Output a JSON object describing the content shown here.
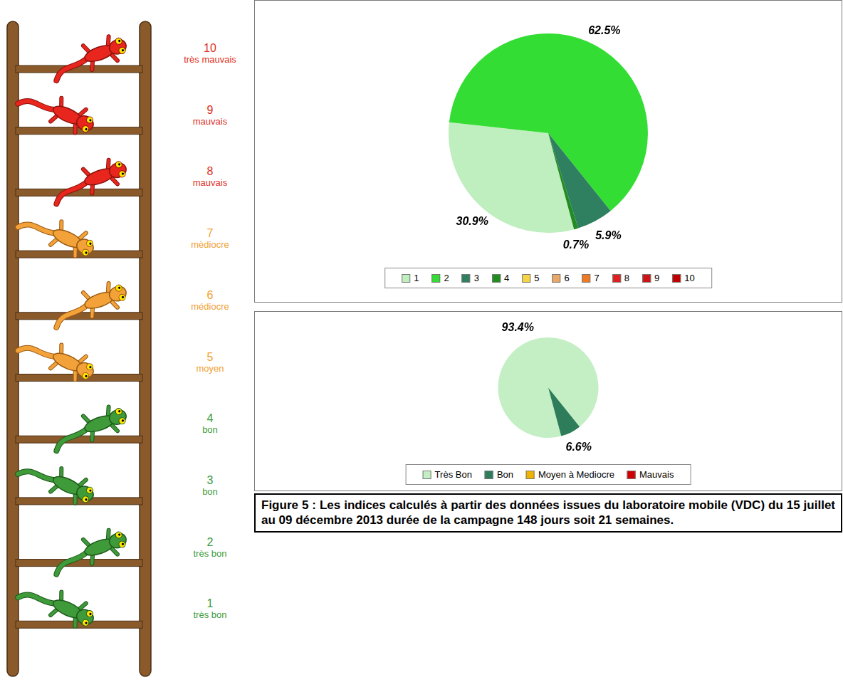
{
  "ladder": {
    "levels": [
      {
        "value": 10,
        "label": "très mauvais",
        "color": "#e0301e"
      },
      {
        "value": 9,
        "label": "mauvais",
        "color": "#e0301e"
      },
      {
        "value": 8,
        "label": "mauvais",
        "color": "#e0301e"
      },
      {
        "value": 7,
        "label": "mèdiocre",
        "color": "#f0a030"
      },
      {
        "value": 6,
        "label": "médiocre",
        "color": "#f0a030"
      },
      {
        "value": 5,
        "label": "moyen",
        "color": "#f0a030"
      },
      {
        "value": 4,
        "label": "bon",
        "color": "#3c9c3c"
      },
      {
        "value": 3,
        "label": "bon",
        "color": "#3c9c3c"
      },
      {
        "value": 2,
        "label": "très bon",
        "color": "#3c9c3c"
      },
      {
        "value": 1,
        "label": "très bon",
        "color": "#3c9c3c"
      }
    ]
  },
  "chart_data": [
    {
      "type": "pie",
      "categories": [
        "1",
        "2",
        "3",
        "4",
        "5",
        "6",
        "7",
        "8",
        "9",
        "10"
      ],
      "values": [
        30.9,
        62.5,
        5.9,
        0.7,
        0,
        0,
        0,
        0,
        0,
        0
      ],
      "value_labels": [
        "30.9%",
        "62.5%",
        "5.9%",
        "0.7%",
        null,
        null,
        null,
        null,
        null,
        null
      ],
      "colors": [
        "#bfeebf",
        "#33dd33",
        "#2e8060",
        "#228b22",
        "#f5d547",
        "#e8a868",
        "#ee7b24",
        "#e02020",
        "#cc1414",
        "#c00000"
      ],
      "data_labels": true,
      "legend": "bottom"
    },
    {
      "type": "pie",
      "categories": [
        "Très Bon",
        "Bon",
        "Moyen à Mediocre",
        "Mauvais"
      ],
      "values": [
        93.4,
        6.6,
        0,
        0
      ],
      "value_labels": [
        "93.4%",
        "6.6%",
        null,
        null
      ],
      "colors": [
        "#c4efc4",
        "#2e7d5a",
        "#f0b400",
        "#d00000"
      ],
      "data_labels": true,
      "legend": "bottom"
    }
  ],
  "caption": "Figure 5 : Les indices calculés à partir des données issues du laboratoire mobile (VDC) du 15 juillet au 09 décembre 2013 durée de la campagne 148 jours soit 21 semaines."
}
